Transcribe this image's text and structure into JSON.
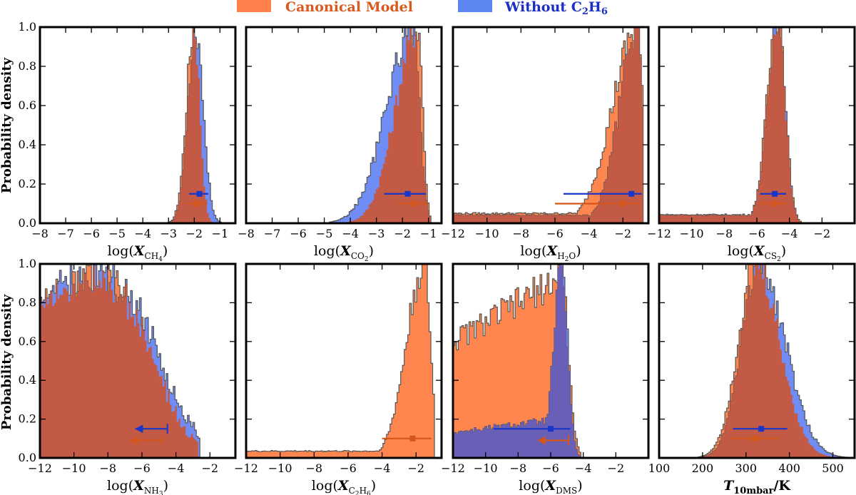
{
  "figure": {
    "legend": [
      {
        "label": "Canonical Model",
        "color": "#ff7f4d",
        "text_color": "#d85a1e"
      },
      {
        "label": "Without C",
        "sub": "2",
        "label2": "H",
        "sub2": "6",
        "color": "#5b86f0",
        "text_color": "#1b2fc4"
      }
    ],
    "ylabel": "Probability density",
    "colors": {
      "canonical_fill": "#ff874f",
      "without_fill": "#6f8df5",
      "overlap_fill": "#c35a45",
      "overlap_dms": "#6a5fb6",
      "outline": "#555555",
      "canonical_marker": "#d4561a",
      "without_marker": "#1936c8"
    }
  },
  "chart_data": [
    {
      "type": "histogram",
      "id": "ch4",
      "xlabel": {
        "pre": "log(X",
        "sub": "CH",
        "subsub": "4",
        "post": ")"
      },
      "xlim": [
        -8,
        -0.4
      ],
      "ylim": [
        0,
        1.0
      ],
      "xticks": [
        -8,
        -7,
        -6,
        -5,
        -4,
        -3,
        -2,
        -1
      ],
      "yticks": [
        0.0,
        0.2,
        0.4,
        0.6,
        0.8,
        1.0
      ],
      "show_yticklabels": true,
      "canonical": {
        "shape": "peak",
        "center": -2.0,
        "w_left": 0.3,
        "w_right": 0.22,
        "floor": 0.0,
        "xmin": -3.0,
        "xmax": -1.0
      },
      "without": {
        "shape": "peak",
        "center": -1.95,
        "w_left": 0.3,
        "w_right": 0.3,
        "floor": 0.0,
        "xmin": -3.0,
        "xmax": -0.9
      },
      "markers": [
        {
          "series": "without",
          "median": -1.8,
          "lo": -2.2,
          "hi": -1.45,
          "y": 0.15,
          "arrow": false
        },
        {
          "series": "canonical",
          "median": -1.9,
          "lo": -2.3,
          "hi": -1.5,
          "y": 0.1,
          "arrow": false
        }
      ]
    },
    {
      "type": "histogram",
      "id": "co2",
      "xlabel": {
        "pre": "log(X",
        "sub": "CO",
        "subsub": "2",
        "post": ")"
      },
      "xlim": [
        -8,
        -0.5
      ],
      "ylim": [
        0,
        1.0
      ],
      "xticks": [
        -8,
        -7,
        -6,
        -5,
        -4,
        -3,
        -2,
        -1
      ],
      "yticks": [
        0.0,
        0.2,
        0.4,
        0.6,
        0.8,
        1.0
      ],
      "show_yticklabels": false,
      "canonical": {
        "shape": "peak",
        "center": -1.4,
        "w_left": 0.85,
        "w_right": 0.18,
        "floor": 0.0,
        "xmin": -4.5,
        "xmax": -0.9
      },
      "without": {
        "shape": "peak",
        "center": -1.6,
        "w_left": 1.0,
        "w_right": 0.25,
        "floor": 0.0,
        "xmin": -4.8,
        "xmax": -0.9
      },
      "markers": [
        {
          "series": "without",
          "median": -1.8,
          "lo": -2.7,
          "hi": -1.1,
          "y": 0.15,
          "arrow": false
        },
        {
          "series": "canonical",
          "median": -1.55,
          "lo": -2.2,
          "hi": -1.05,
          "y": 0.1,
          "arrow": false
        }
      ]
    },
    {
      "type": "histogram",
      "id": "h2o",
      "xlabel": {
        "pre": "log(X",
        "sub": "H",
        "subsub": "2",
        "sub2": "O",
        "post": ")"
      },
      "xlim": [
        -12,
        -0.5
      ],
      "ylim": [
        0,
        1.0
      ],
      "xticks": [
        -12,
        -10,
        -8,
        -6,
        -4,
        -2
      ],
      "yticks": [
        0.0,
        0.2,
        0.4,
        0.6,
        0.8,
        1.0
      ],
      "show_yticklabels": false,
      "canonical": {
        "shape": "peak",
        "center": -1.1,
        "w_left": 1.5,
        "w_right": 0.25,
        "floor": 0.05,
        "xmin": -12,
        "xmax": -0.8
      },
      "without": {
        "shape": "peak",
        "center": -1.1,
        "w_left": 1.1,
        "w_right": 0.25,
        "floor": 0.04,
        "xmin": -12,
        "xmax": -0.8
      },
      "markers": [
        {
          "series": "without",
          "median": -1.5,
          "lo": -5.5,
          "hi": -0.9,
          "y": 0.15,
          "arrow": false
        },
        {
          "series": "canonical",
          "median": -2.0,
          "lo": -6.0,
          "hi": -1.0,
          "y": 0.1,
          "arrow": false
        }
      ]
    },
    {
      "type": "histogram",
      "id": "cs2",
      "xlabel": {
        "pre": "log(X",
        "sub": "CS",
        "subsub": "2",
        "post": ")"
      },
      "xlim": [
        -12,
        0
      ],
      "ylim": [
        0,
        1.0
      ],
      "xticks": [
        -12,
        -10,
        -8,
        -6,
        -4,
        -2
      ],
      "yticks": [
        0.0,
        0.2,
        0.4,
        0.6,
        0.8,
        1.0
      ],
      "show_yticklabels": false,
      "canonical": {
        "shape": "peak",
        "center": -4.7,
        "w_left": 0.65,
        "w_right": 0.45,
        "floor": 0.04,
        "xmin": -12,
        "xmax": -3.3
      },
      "without": {
        "shape": "peak",
        "center": -4.7,
        "w_left": 0.65,
        "w_right": 0.45,
        "floor": 0.04,
        "xmin": -12,
        "xmax": -3.3
      },
      "markers": [
        {
          "series": "without",
          "median": -4.9,
          "lo": -5.8,
          "hi": -4.2,
          "y": 0.15,
          "arrow": false
        },
        {
          "series": "canonical",
          "median": -4.9,
          "lo": -5.8,
          "hi": -4.2,
          "y": 0.1,
          "arrow": false
        }
      ]
    },
    {
      "type": "histogram",
      "id": "nh3",
      "xlabel": {
        "pre": "log(X",
        "sub": "NH",
        "subsub": "3",
        "post": ")"
      },
      "xlim": [
        -12,
        -0.5
      ],
      "ylim": [
        0,
        1.0
      ],
      "xticks": [
        -12,
        -10,
        -8,
        -6,
        -4,
        -2
      ],
      "yticks": [
        0.0,
        0.2,
        0.4,
        0.6,
        0.8,
        1.0
      ],
      "show_yticklabels": true,
      "canonical": {
        "shape": "broad",
        "center": -8.8,
        "w_left": 4.5,
        "w_right": 3.2,
        "floor": 0.0,
        "xmin": -12,
        "xmax": -2.7
      },
      "without": {
        "shape": "broad",
        "center": -8.6,
        "w_left": 4.5,
        "w_right": 3.4,
        "floor": 0.0,
        "xmin": -12,
        "xmax": -2.6
      },
      "markers": [
        {
          "series": "without",
          "median": -4.5,
          "lo": -6.4,
          "hi": -4.5,
          "y": 0.15,
          "arrow": true
        },
        {
          "series": "canonical",
          "median": -4.8,
          "lo": -6.7,
          "hi": -4.8,
          "y": 0.09,
          "arrow": true
        }
      ]
    },
    {
      "type": "histogram",
      "id": "c2h6",
      "xlabel": {
        "pre": "log(X",
        "sub": "C",
        "subsub": "2",
        "sub2": "H",
        "subsub2": "6",
        "post": ")"
      },
      "xlim": [
        -12,
        -0.5
      ],
      "ylim": [
        0,
        1.0
      ],
      "xticks": [
        -12,
        -10,
        -8,
        -6,
        -4,
        -2
      ],
      "yticks": [
        0.0,
        0.2,
        0.4,
        0.6,
        0.8,
        1.0
      ],
      "show_yticklabels": false,
      "canonical": {
        "shape": "peak",
        "center": -1.5,
        "w_left": 1.05,
        "w_right": 0.35,
        "floor": 0.035,
        "xmin": -12,
        "xmax": -0.9
      },
      "without": null,
      "markers": [
        {
          "series": "canonical",
          "median": -2.2,
          "lo": -4.0,
          "hi": -1.1,
          "y": 0.1,
          "arrow": false
        }
      ]
    },
    {
      "type": "histogram",
      "id": "dms",
      "xlabel": {
        "pre": "log(X",
        "sub": "DMS",
        "post": ")"
      },
      "xlim": [
        -12,
        0
      ],
      "ylim": [
        0,
        1.0
      ],
      "xticks": [
        -12,
        -10,
        -8,
        -6,
        -4,
        -2
      ],
      "yticks": [
        0.0,
        0.2,
        0.4,
        0.6,
        0.8,
        1.0
      ],
      "show_yticklabels": false,
      "canonical": {
        "shape": "plateau",
        "center": -5.4,
        "w_left": 0.4,
        "w_right": 0.45,
        "floor": 0.6,
        "xmin": -12,
        "xmax": -4.2
      },
      "without": {
        "shape": "plateau",
        "center": -5.3,
        "w_left": 0.5,
        "w_right": 0.35,
        "floor": 0.13,
        "xmin": -12,
        "xmax": -4.2
      },
      "markers": [
        {
          "series": "without",
          "median": -6.0,
          "lo": -9.5,
          "hi": -4.8,
          "y": 0.15,
          "arrow": false
        },
        {
          "series": "canonical",
          "median": -4.9,
          "lo": -6.8,
          "hi": -4.9,
          "y": 0.09,
          "arrow": true
        }
      ]
    },
    {
      "type": "histogram",
      "id": "temp",
      "xlabel": {
        "pre": "T",
        "sub": "10mbar",
        "post": "/K",
        "bold": true
      },
      "xlim": [
        100,
        550
      ],
      "ylim": [
        0,
        1.0
      ],
      "xticks": [
        100,
        200,
        300,
        400,
        500
      ],
      "yticks": [
        0.0,
        0.2,
        0.4,
        0.6,
        0.8,
        1.0
      ],
      "show_yticklabels": false,
      "canonical": {
        "shape": "peak",
        "center": 322,
        "w_left": 40,
        "w_right": 55,
        "floor": 0.0,
        "xmin": 150,
        "xmax": 550
      },
      "without": {
        "shape": "peak",
        "center": 330,
        "w_left": 40,
        "w_right": 60,
        "floor": 0.0,
        "xmin": 150,
        "xmax": 550
      },
      "markers": [
        {
          "series": "without",
          "median": 335,
          "lo": 270,
          "hi": 395,
          "y": 0.15,
          "arrow": false
        },
        {
          "series": "canonical",
          "median": 320,
          "lo": 265,
          "hi": 375,
          "y": 0.1,
          "arrow": false
        }
      ]
    }
  ]
}
